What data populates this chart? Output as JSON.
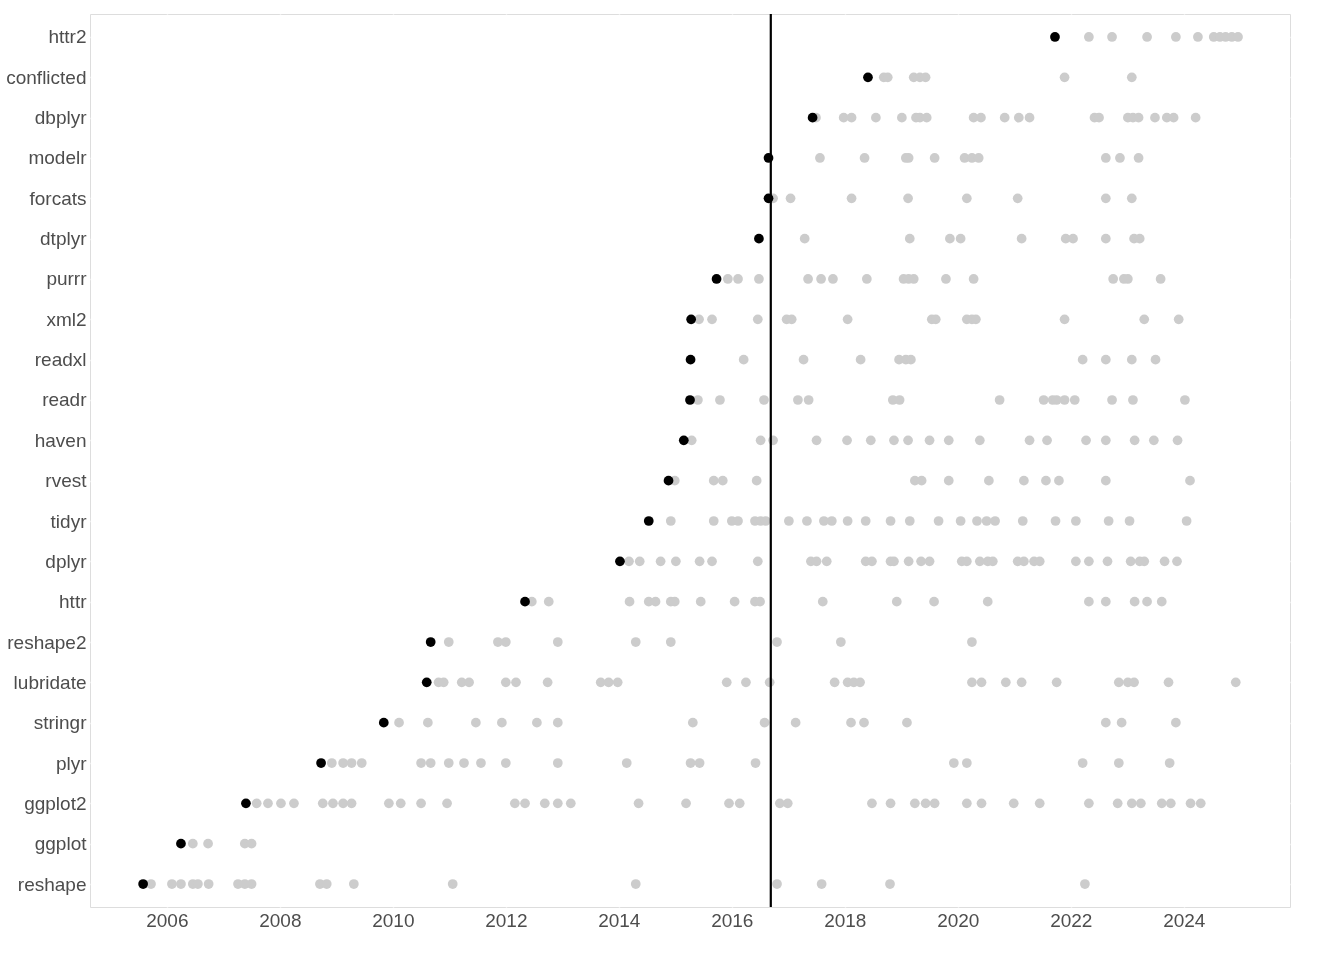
{
  "chart_data": {
    "type": "scatter",
    "orientation": "horizontal",
    "categories": [
      "httr2",
      "conflicted",
      "dbplyr",
      "modelr",
      "forcats",
      "dtplyr",
      "purrr",
      "xml2",
      "readxl",
      "readr",
      "haven",
      "rvest",
      "tidyr",
      "dplyr",
      "httr",
      "reshape2",
      "lubridate",
      "stringr",
      "plyr",
      "ggplot2",
      "ggplot",
      "reshape"
    ],
    "xlim": [
      2004.64,
      2025.88
    ],
    "xticks": [
      2006,
      2008,
      2010,
      2012,
      2014,
      2016,
      2018,
      2020,
      2022,
      2024
    ],
    "grid": true,
    "marker": "circle",
    "ref_lines": [
      {
        "axis": "x",
        "value": 2016.69,
        "color": "#000000"
      }
    ],
    "series": [
      {
        "color": "#cccccc",
        "x": [
          "httr2",
          "httr2",
          "httr2",
          "httr2",
          "httr2",
          "httr2",
          "httr2",
          "httr2",
          "httr2",
          "httr2",
          "conflicted",
          "conflicted",
          "conflicted",
          "conflicted",
          "conflicted",
          "conflicted",
          "conflicted",
          "dbplyr",
          "dbplyr",
          "dbplyr",
          "dbplyr",
          "dbplyr",
          "dbplyr",
          "dbplyr",
          "dbplyr",
          "dbplyr",
          "dbplyr",
          "dbplyr",
          "dbplyr",
          "dbplyr",
          "dbplyr",
          "dbplyr",
          "dbplyr",
          "dbplyr",
          "dbplyr",
          "dbplyr",
          "dbplyr",
          "dbplyr",
          "dbplyr",
          "modelr",
          "modelr",
          "modelr",
          "modelr",
          "modelr",
          "modelr",
          "modelr",
          "modelr",
          "modelr",
          "modelr",
          "modelr",
          "forcats",
          "forcats",
          "forcats",
          "forcats",
          "forcats",
          "forcats",
          "forcats",
          "forcats",
          "dtplyr",
          "dtplyr",
          "dtplyr",
          "dtplyr",
          "dtplyr",
          "dtplyr",
          "dtplyr",
          "dtplyr",
          "dtplyr",
          "dtplyr",
          "purrr",
          "purrr",
          "purrr",
          "purrr",
          "purrr",
          "purrr",
          "purrr",
          "purrr",
          "purrr",
          "purrr",
          "purrr",
          "purrr",
          "purrr",
          "purrr",
          "purrr",
          "purrr",
          "xml2",
          "xml2",
          "xml2",
          "xml2",
          "xml2",
          "xml2",
          "xml2",
          "xml2",
          "xml2",
          "xml2",
          "xml2",
          "xml2",
          "xml2",
          "xml2",
          "readxl",
          "readxl",
          "readxl",
          "readxl",
          "readxl",
          "readxl",
          "readxl",
          "readxl",
          "readxl",
          "readxl",
          "readr",
          "readr",
          "readr",
          "readr",
          "readr",
          "readr",
          "readr",
          "readr",
          "readr",
          "readr",
          "readr",
          "readr",
          "readr",
          "readr",
          "readr",
          "readr",
          "haven",
          "haven",
          "haven",
          "haven",
          "haven",
          "haven",
          "haven",
          "haven",
          "haven",
          "haven",
          "haven",
          "haven",
          "haven",
          "haven",
          "haven",
          "haven",
          "haven",
          "haven",
          "rvest",
          "rvest",
          "rvest",
          "rvest",
          "rvest",
          "rvest",
          "rvest",
          "rvest",
          "rvest",
          "rvest",
          "rvest",
          "rvest",
          "rvest",
          "tidyr",
          "tidyr",
          "tidyr",
          "tidyr",
          "tidyr",
          "tidyr",
          "tidyr",
          "tidyr",
          "tidyr",
          "tidyr",
          "tidyr",
          "tidyr",
          "tidyr",
          "tidyr",
          "tidyr",
          "tidyr",
          "tidyr",
          "tidyr",
          "tidyr",
          "tidyr",
          "tidyr",
          "tidyr",
          "tidyr",
          "tidyr",
          "tidyr",
          "tidyr",
          "dplyr",
          "dplyr",
          "dplyr",
          "dplyr",
          "dplyr",
          "dplyr",
          "dplyr",
          "dplyr",
          "dplyr",
          "dplyr",
          "dplyr",
          "dplyr",
          "dplyr",
          "dplyr",
          "dplyr",
          "dplyr",
          "dplyr",
          "dplyr",
          "dplyr",
          "dplyr",
          "dplyr",
          "dplyr",
          "dplyr",
          "dplyr",
          "dplyr",
          "dplyr",
          "dplyr",
          "dplyr",
          "dplyr",
          "dplyr",
          "dplyr",
          "dplyr",
          "dplyr",
          "dplyr",
          "httr",
          "httr",
          "httr",
          "httr",
          "httr",
          "httr",
          "httr",
          "httr",
          "httr",
          "httr",
          "httr",
          "httr",
          "httr",
          "httr",
          "httr",
          "httr",
          "httr",
          "httr",
          "httr",
          "httr",
          "reshape2",
          "reshape2",
          "reshape2",
          "reshape2",
          "reshape2",
          "reshape2",
          "reshape2",
          "reshape2",
          "reshape2",
          "lubridate",
          "lubridate",
          "lubridate",
          "lubridate",
          "lubridate",
          "lubridate",
          "lubridate",
          "lubridate",
          "lubridate",
          "lubridate",
          "lubridate",
          "lubridate",
          "lubridate",
          "lubridate",
          "lubridate",
          "lubridate",
          "lubridate",
          "lubridate",
          "lubridate",
          "lubridate",
          "lubridate",
          "lubridate",
          "lubridate",
          "lubridate",
          "lubridate",
          "lubridate",
          "lubridate",
          "stringr",
          "stringr",
          "stringr",
          "stringr",
          "stringr",
          "stringr",
          "stringr",
          "stringr",
          "stringr",
          "stringr",
          "stringr",
          "stringr",
          "stringr",
          "stringr",
          "stringr",
          "plyr",
          "plyr",
          "plyr",
          "plyr",
          "plyr",
          "plyr",
          "plyr",
          "plyr",
          "plyr",
          "plyr",
          "plyr",
          "plyr",
          "plyr",
          "plyr",
          "plyr",
          "plyr",
          "plyr",
          "plyr",
          "plyr",
          "plyr",
          "ggplot2",
          "ggplot2",
          "ggplot2",
          "ggplot2",
          "ggplot2",
          "ggplot2",
          "ggplot2",
          "ggplot2",
          "ggplot2",
          "ggplot2",
          "ggplot2",
          "ggplot2",
          "ggplot2",
          "ggplot2",
          "ggplot2",
          "ggplot2",
          "ggplot2",
          "ggplot2",
          "ggplot2",
          "ggplot2",
          "ggplot2",
          "ggplot2",
          "ggplot2",
          "ggplot2",
          "ggplot2",
          "ggplot2",
          "ggplot2",
          "ggplot2",
          "ggplot2",
          "ggplot2",
          "ggplot2",
          "ggplot2",
          "ggplot2",
          "ggplot2",
          "ggplot2",
          "ggplot2",
          "ggplot2",
          "ggplot2",
          "ggplot2",
          "ggplot2",
          "ggplot",
          "ggplot",
          "ggplot",
          "ggplot",
          "reshape",
          "reshape",
          "reshape",
          "reshape",
          "reshape",
          "reshape",
          "reshape",
          "reshape",
          "reshape",
          "reshape",
          "reshape",
          "reshape",
          "reshape",
          "reshape",
          "reshape",
          "reshape",
          "reshape",
          "reshape"
        ],
        "values": [
          2022.32,
          2022.73,
          2023.35,
          2023.86,
          2024.25,
          2024.53,
          2024.64,
          2024.74,
          2024.85,
          2024.96,
          2018.69,
          2018.76,
          2019.22,
          2019.33,
          2019.43,
          2021.89,
          2023.08,
          2017.49,
          2017.98,
          2018.12,
          2018.55,
          2019.01,
          2019.26,
          2019.33,
          2019.45,
          2020.28,
          2020.41,
          2020.83,
          2021.08,
          2021.27,
          2022.42,
          2022.5,
          2023.01,
          2023.1,
          2023.2,
          2023.49,
          2023.7,
          2023.82,
          2024.21,
          2017.56,
          2018.35,
          2019.08,
          2019.13,
          2019.59,
          2020.12,
          2020.25,
          2020.37,
          2022.62,
          2022.87,
          2023.2,
          2016.73,
          2017.04,
          2018.12,
          2019.12,
          2020.16,
          2021.06,
          2022.62,
          2023.08,
          2017.29,
          2019.15,
          2019.86,
          2020.05,
          2021.13,
          2021.91,
          2022.04,
          2022.62,
          2023.12,
          2023.22,
          2015.93,
          2016.11,
          2016.48,
          2017.35,
          2017.58,
          2017.79,
          2018.39,
          2019.04,
          2019.13,
          2019.22,
          2019.79,
          2020.28,
          2022.75,
          2022.94,
          2023.01,
          2023.59,
          2015.42,
          2015.65,
          2016.46,
          2016.97,
          2017.06,
          2018.05,
          2019.54,
          2019.61,
          2020.16,
          2020.25,
          2020.32,
          2021.89,
          2023.3,
          2023.91,
          2016.21,
          2017.27,
          2018.28,
          2018.96,
          2019.08,
          2019.17,
          2022.21,
          2022.62,
          2023.08,
          2023.5,
          2015.4,
          2015.79,
          2016.57,
          2017.17,
          2017.36,
          2018.85,
          2018.97,
          2020.74,
          2021.52,
          2021.68,
          2021.75,
          2021.89,
          2022.07,
          2022.73,
          2023.1,
          2024.02,
          2015.29,
          2016.51,
          2016.73,
          2017.5,
          2018.04,
          2018.46,
          2018.87,
          2019.12,
          2019.5,
          2019.84,
          2020.39,
          2021.27,
          2021.58,
          2022.27,
          2022.62,
          2023.13,
          2023.47,
          2023.89,
          2014.99,
          2015.68,
          2015.84,
          2016.44,
          2019.24,
          2019.36,
          2019.84,
          2020.55,
          2021.17,
          2021.56,
          2021.79,
          2022.62,
          2024.11,
          2014.92,
          2015.68,
          2016.0,
          2016.11,
          2016.41,
          2016.51,
          2016.6,
          2017.01,
          2017.33,
          2017.63,
          2017.77,
          2018.05,
          2018.37,
          2018.81,
          2019.15,
          2019.66,
          2020.05,
          2020.34,
          2020.51,
          2020.66,
          2021.15,
          2021.73,
          2022.09,
          2022.67,
          2023.04,
          2024.05,
          2014.18,
          2014.37,
          2014.74,
          2015.01,
          2015.43,
          2015.65,
          2016.46,
          2017.4,
          2017.5,
          2017.68,
          2018.37,
          2018.48,
          2018.81,
          2018.87,
          2019.13,
          2019.35,
          2019.5,
          2020.07,
          2020.16,
          2020.39,
          2020.53,
          2020.62,
          2021.06,
          2021.17,
          2021.35,
          2021.45,
          2022.09,
          2022.32,
          2022.65,
          2023.06,
          2023.22,
          2023.3,
          2023.66,
          2023.88,
          2012.46,
          2012.76,
          2014.19,
          2014.53,
          2014.65,
          2014.92,
          2014.99,
          2015.45,
          2016.05,
          2016.41,
          2016.5,
          2017.61,
          2018.92,
          2019.58,
          2020.53,
          2022.32,
          2022.62,
          2023.13,
          2023.35,
          2023.61,
          2010.99,
          2011.86,
          2012.0,
          2012.92,
          2014.3,
          2014.92,
          2016.8,
          2017.93,
          2020.25,
          2010.81,
          2010.9,
          2011.22,
          2011.35,
          2012.0,
          2012.18,
          2012.74,
          2013.68,
          2013.82,
          2013.98,
          2015.91,
          2016.25,
          2016.67,
          2017.82,
          2018.05,
          2018.16,
          2018.27,
          2020.25,
          2020.42,
          2020.85,
          2021.13,
          2021.75,
          2022.85,
          2023.01,
          2023.12,
          2023.73,
          2024.92,
          2010.11,
          2010.62,
          2011.47,
          2011.93,
          2012.55,
          2012.92,
          2015.31,
          2016.58,
          2017.13,
          2018.11,
          2018.34,
          2019.1,
          2022.62,
          2022.9,
          2023.86,
          2008.92,
          2009.12,
          2009.27,
          2009.45,
          2010.5,
          2010.67,
          2010.99,
          2011.26,
          2011.56,
          2012.0,
          2012.92,
          2014.14,
          2015.27,
          2015.43,
          2016.42,
          2019.93,
          2020.16,
          2022.21,
          2022.85,
          2023.75,
          2007.59,
          2007.79,
          2008.02,
          2008.25,
          2008.76,
          2008.94,
          2009.12,
          2009.27,
          2009.93,
          2010.14,
          2010.5,
          2010.96,
          2012.16,
          2012.34,
          2012.69,
          2012.92,
          2013.15,
          2014.35,
          2015.19,
          2015.95,
          2016.14,
          2016.85,
          2016.99,
          2018.48,
          2018.81,
          2019.24,
          2019.43,
          2019.59,
          2020.16,
          2020.42,
          2020.99,
          2021.45,
          2022.32,
          2022.83,
          2023.08,
          2023.24,
          2023.61,
          2023.77,
          2024.12,
          2024.3,
          2006.46,
          2006.73,
          2007.38,
          2007.5,
          2005.72,
          2006.09,
          2006.25,
          2006.46,
          2006.55,
          2006.74,
          2007.26,
          2007.38,
          2007.5,
          2008.71,
          2008.83,
          2009.31,
          2011.06,
          2014.3,
          2016.8,
          2017.59,
          2018.8,
          2022.25
        ]
      },
      {
        "color": "#000000",
        "values": [
          2021.72,
          2018.41,
          2017.43,
          2016.65,
          2016.65,
          2016.48,
          2015.73,
          2015.28,
          2015.27,
          2015.26,
          2015.15,
          2014.88,
          2014.53,
          2014.02,
          2012.34,
          2010.67,
          2010.6,
          2009.84,
          2008.73,
          2007.4,
          2006.25,
          2005.58
        ]
      }
    ]
  }
}
